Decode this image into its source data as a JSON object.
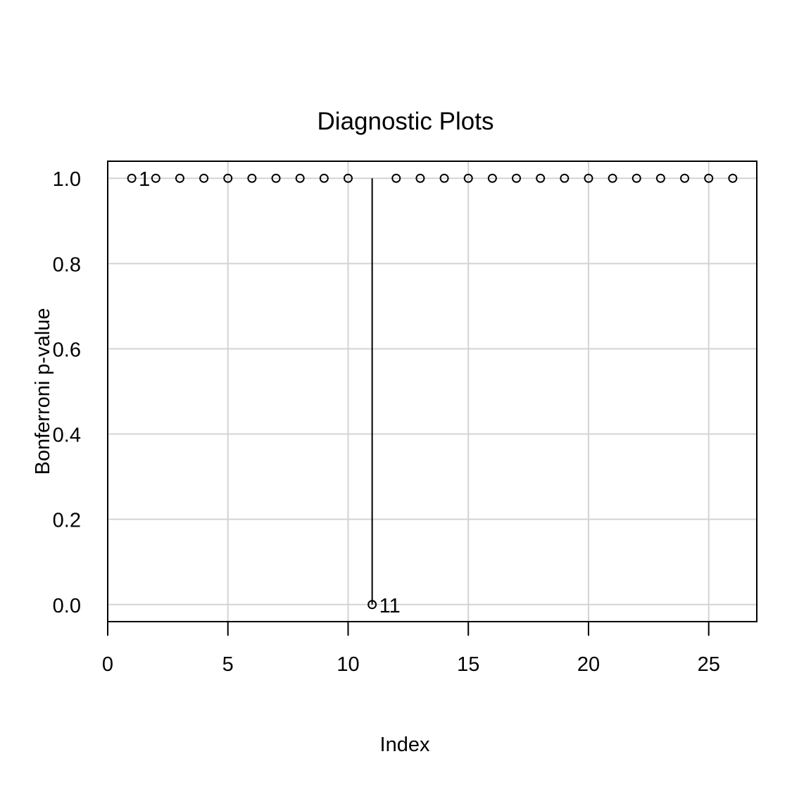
{
  "chart_data": {
    "type": "scatter",
    "title": "Diagnostic Plots",
    "xlabel": "Index",
    "ylabel": "Bonferroni p-value",
    "xlim": [
      0,
      27
    ],
    "ylim": [
      -0.04,
      1.04
    ],
    "x_ticks": [
      0,
      5,
      10,
      15,
      20,
      25
    ],
    "y_ticks": [
      0.0,
      0.2,
      0.4,
      0.6,
      0.8,
      1.0
    ],
    "y_tick_labels": [
      "0.0",
      "0.2",
      "0.4",
      "0.6",
      "0.8",
      "1.0"
    ],
    "grid": true,
    "stems": true,
    "x": [
      1,
      2,
      3,
      4,
      5,
      6,
      7,
      8,
      9,
      10,
      11,
      12,
      13,
      14,
      15,
      16,
      17,
      18,
      19,
      20,
      21,
      22,
      23,
      24,
      25,
      26
    ],
    "y": [
      1,
      1,
      1,
      1,
      1,
      1,
      1,
      1,
      1,
      1,
      0.0,
      1,
      1,
      1,
      1,
      1,
      1,
      1,
      1,
      1,
      1,
      1,
      1,
      1,
      1,
      1
    ],
    "point_labels": [
      {
        "x": 1,
        "y": 1,
        "text": "1"
      },
      {
        "x": 11,
        "y": 0.0,
        "text": "11"
      }
    ]
  }
}
